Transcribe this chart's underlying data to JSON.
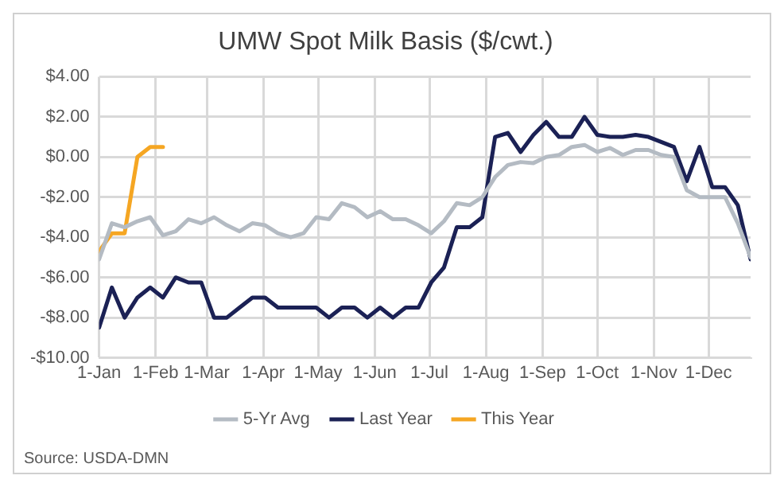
{
  "chart_data": {
    "type": "line",
    "title": "UMW Spot Milk Basis ($/cwt.)",
    "x": [
      "--01-01",
      "--01-08",
      "--01-15",
      "--01-22",
      "--01-29",
      "--02-05",
      "--02-12",
      "--02-19",
      "--02-26",
      "--03-05",
      "--03-12",
      "--03-19",
      "--03-26",
      "--04-02",
      "--04-09",
      "--04-16",
      "--04-23",
      "--04-30",
      "--05-07",
      "--05-14",
      "--05-21",
      "--05-28",
      "--06-04",
      "--06-11",
      "--06-18",
      "--06-25",
      "--07-02",
      "--07-09",
      "--07-16",
      "--07-23",
      "--07-30",
      "--08-06",
      "--08-13",
      "--08-20",
      "--08-27",
      "--09-03",
      "--09-10",
      "--09-17",
      "--09-24",
      "--10-01",
      "--10-08",
      "--10-15",
      "--10-22",
      "--10-29",
      "--11-05",
      "--11-12",
      "--11-19",
      "--11-26",
      "--12-03",
      "--12-10",
      "--12-17",
      "--12-24"
    ],
    "series": [
      {
        "name": "5-Yr Avg",
        "color": "#b4bbc3",
        "values": [
          -5.1,
          -3.3,
          -3.5,
          -3.2,
          -3,
          -3.9,
          -3.7,
          -3.1,
          -3.3,
          -3,
          -3.4,
          -3.7,
          -3.3,
          -3.4,
          -3.8,
          -4,
          -3.8,
          -3,
          -3.1,
          -2.3,
          -2.5,
          -3,
          -2.7,
          -3.1,
          -3.1,
          -3.4,
          -3.8,
          -3.2,
          -2.3,
          -2.4,
          -2,
          -1,
          -0.4,
          -0.25,
          -0.3,
          0,
          0.1,
          0.5,
          0.6,
          0.25,
          0.45,
          0.1,
          0.35,
          0.35,
          0.1,
          0,
          -1.65,
          -2,
          -2,
          -2,
          -3.3,
          -5
        ]
      },
      {
        "name": "Last Year",
        "color": "#1b2155",
        "values": [
          -8.5,
          -6.5,
          -8,
          -7,
          -6.5,
          -7,
          -6,
          -6.25,
          -6.25,
          -8,
          -8,
          -7.5,
          -7,
          -7,
          -7.5,
          -7.5,
          -7.5,
          -7.5,
          -8,
          -7.5,
          -7.5,
          -8,
          -7.5,
          -8,
          -7.5,
          -7.5,
          -6.25,
          -5.5,
          -3.5,
          -3.5,
          -3,
          1,
          1.2,
          0.25,
          1.1,
          1.75,
          1,
          1,
          2,
          1.1,
          1,
          1,
          1.1,
          1,
          0.75,
          0.5,
          -1.2,
          0.5,
          -1.5,
          -1.5,
          -2.4,
          -5.1
        ]
      },
      {
        "name": "This Year",
        "color": "#f5a623",
        "x": [
          "--01-01",
          "--01-08",
          "--01-15",
          "--01-22",
          "--01-29",
          "--02-05"
        ],
        "values": [
          -4.7,
          -3.8,
          -3.8,
          0,
          0.5,
          0.5
        ]
      }
    ],
    "xlim": [
      "--01-01",
      "--12-24"
    ],
    "xticks": [
      {
        "value": "--01-01",
        "label": "1-Jan"
      },
      {
        "value": "--02-01",
        "label": "1-Feb"
      },
      {
        "value": "--03-01",
        "label": "1-Mar"
      },
      {
        "value": "--04-01",
        "label": "1-Apr"
      },
      {
        "value": "--05-01",
        "label": "1-May"
      },
      {
        "value": "--06-01",
        "label": "1-Jun"
      },
      {
        "value": "--07-01",
        "label": "1-Jul"
      },
      {
        "value": "--08-01",
        "label": "1-Aug"
      },
      {
        "value": "--09-01",
        "label": "1-Sep"
      },
      {
        "value": "--10-01",
        "label": "1-Oct"
      },
      {
        "value": "--11-01",
        "label": "1-Nov"
      },
      {
        "value": "--12-01",
        "label": "1-Dec"
      }
    ],
    "ylim": [
      -10,
      4
    ],
    "yticks": [
      {
        "value": -10,
        "label": "-$10.00"
      },
      {
        "value": -8,
        "label": "-$8.00"
      },
      {
        "value": -6,
        "label": "-$6.00"
      },
      {
        "value": -4,
        "label": "-$4.00"
      },
      {
        "value": -2,
        "label": "-$2.00"
      },
      {
        "value": 0,
        "label": "$0.00"
      },
      {
        "value": 2,
        "label": "$2.00"
      },
      {
        "value": 4,
        "label": "$4.00"
      }
    ],
    "grid": true,
    "legend": "bottom",
    "marker": "none",
    "line_style": "solid",
    "annotations": [
      "Source: USDA-DMN"
    ]
  }
}
